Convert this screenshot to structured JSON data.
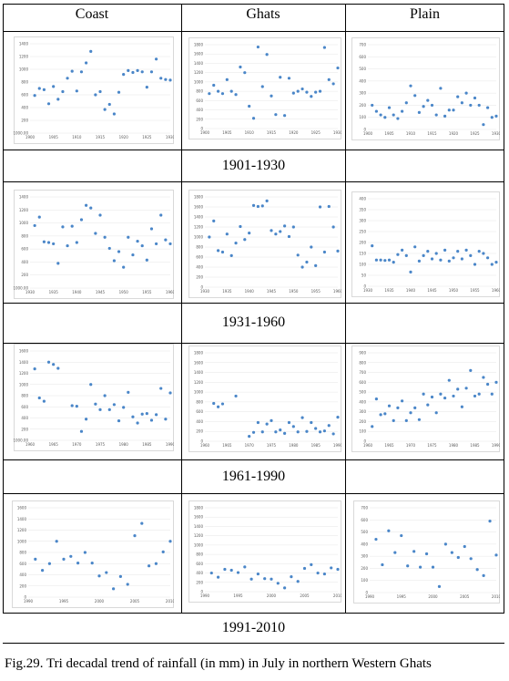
{
  "headers": [
    "Coast",
    "Ghats",
    "Plain"
  ],
  "periods": [
    "1901-1930",
    "1931-1960",
    "1961-1990",
    "1991-2010"
  ],
  "caption": "Fig.29. Tri decadal trend of rainfall (in mm) in July in northern Western Ghats",
  "colors": {
    "marker": "#4a86c8",
    "frame": "#d9d9d9",
    "grid": "#e6e6e6"
  },
  "chart_data": [
    {
      "type": "scatter",
      "region": "Coast",
      "period": "1901-1930",
      "x_ticks": [
        "1900",
        "1905",
        "1910",
        "1915",
        "1920",
        "1925",
        "1930"
      ],
      "y_ticks": [
        "-1000.00",
        "200",
        "400",
        "600",
        "800",
        "1000",
        "1200",
        "1400"
      ],
      "x": [
        1901,
        1902,
        1903,
        1904,
        1905,
        1906,
        1907,
        1908,
        1909,
        1910,
        1911,
        1912,
        1913,
        1914,
        1915,
        1916,
        1917,
        1918,
        1919,
        1920,
        1921,
        1922,
        1923,
        1924,
        1925,
        1926,
        1927,
        1928,
        1929,
        1930
      ],
      "y": [
        590,
        700,
        680,
        460,
        730,
        530,
        650,
        860,
        970,
        660,
        960,
        1100,
        1280,
        600,
        650,
        370,
        450,
        300,
        640,
        920,
        980,
        950,
        980,
        960,
        720,
        960,
        1160,
        860,
        840,
        830
      ]
    },
    {
      "type": "scatter",
      "region": "Ghats",
      "period": "1901-1930",
      "x_ticks": [
        "1900",
        "1905",
        "1910",
        "1915",
        "1920",
        "1925",
        "1930"
      ],
      "y_ticks": [
        "0",
        "200",
        "400",
        "600",
        "800",
        "1000",
        "1200",
        "1400",
        "1600",
        "1800"
      ],
      "x": [
        1901,
        1902,
        1903,
        1904,
        1905,
        1906,
        1907,
        1908,
        1909,
        1910,
        1911,
        1912,
        1913,
        1914,
        1915,
        1916,
        1917,
        1918,
        1919,
        1920,
        1921,
        1922,
        1923,
        1924,
        1925,
        1926,
        1927,
        1928,
        1929,
        1930
      ],
      "y": [
        750,
        930,
        800,
        750,
        1050,
        800,
        730,
        1320,
        1200,
        480,
        220,
        1750,
        900,
        1590,
        700,
        300,
        1100,
        280,
        1080,
        760,
        800,
        850,
        780,
        690,
        780,
        800,
        1740,
        1050,
        960,
        1300
      ]
    },
    {
      "type": "scatter",
      "region": "Plain",
      "period": "1901-1930",
      "x_ticks": [
        "1900",
        "1905",
        "1910",
        "1915",
        "1920",
        "1925",
        "1930"
      ],
      "y_ticks": [
        "0",
        "100",
        "200",
        "300",
        "400",
        "500",
        "600",
        "700"
      ],
      "x": [
        1901,
        1902,
        1903,
        1904,
        1905,
        1906,
        1907,
        1908,
        1909,
        1910,
        1911,
        1912,
        1913,
        1914,
        1915,
        1916,
        1917,
        1918,
        1919,
        1920,
        1921,
        1922,
        1923,
        1924,
        1925,
        1926,
        1927,
        1928,
        1929,
        1930
      ],
      "y": [
        200,
        150,
        120,
        100,
        180,
        120,
        90,
        150,
        220,
        360,
        280,
        140,
        190,
        240,
        200,
        120,
        340,
        110,
        160,
        160,
        270,
        220,
        300,
        200,
        260,
        200,
        40,
        180,
        100,
        110
      ]
    },
    {
      "type": "scatter",
      "region": "Coast",
      "period": "1931-1960",
      "x_ticks": [
        "1930",
        "1935",
        "1940",
        "1945",
        "1950",
        "1955",
        "1960"
      ],
      "y_ticks": [
        "-1000.00",
        "200",
        "400",
        "600",
        "800",
        "1000",
        "1200",
        "1400"
      ],
      "x": [
        1931,
        1932,
        1933,
        1934,
        1935,
        1936,
        1937,
        1938,
        1939,
        1940,
        1941,
        1942,
        1943,
        1944,
        1945,
        1946,
        1947,
        1948,
        1949,
        1950,
        1951,
        1952,
        1953,
        1954,
        1955,
        1956,
        1957,
        1958,
        1959,
        1960
      ],
      "y": [
        960,
        1090,
        710,
        700,
        680,
        380,
        940,
        650,
        950,
        700,
        1050,
        1270,
        1230,
        840,
        1120,
        780,
        610,
        420,
        560,
        320,
        780,
        510,
        720,
        650,
        430,
        910,
        680,
        1120,
        740,
        680
      ]
    },
    {
      "type": "scatter",
      "region": "Ghats",
      "period": "1931-1960",
      "x_ticks": [
        "1930",
        "1935",
        "1940",
        "1945",
        "1950",
        "1955",
        "1960"
      ],
      "y_ticks": [
        "0",
        "200",
        "400",
        "600",
        "800",
        "1000",
        "1200",
        "1400",
        "1600",
        "1800"
      ],
      "x": [
        1931,
        1932,
        1933,
        1934,
        1935,
        1936,
        1937,
        1938,
        1939,
        1940,
        1941,
        1942,
        1943,
        1944,
        1945,
        1946,
        1947,
        1948,
        1949,
        1950,
        1951,
        1952,
        1953,
        1954,
        1955,
        1956,
        1957,
        1958,
        1959,
        1960
      ],
      "y": [
        1000,
        1320,
        730,
        700,
        1060,
        630,
        880,
        1210,
        950,
        1080,
        1630,
        1610,
        1620,
        1720,
        1130,
        1060,
        1110,
        1220,
        1010,
        1200,
        640,
        400,
        500,
        800,
        430,
        1600,
        700,
        1610,
        1200,
        720
      ]
    },
    {
      "type": "scatter",
      "region": "Plain",
      "period": "1931-1960",
      "x_ticks": [
        "1930",
        "1935",
        "1940",
        "1945",
        "1950",
        "1955",
        "1960"
      ],
      "y_ticks": [
        "0",
        "50",
        "100",
        "150",
        "200",
        "250",
        "300",
        "350",
        "400"
      ],
      "x": [
        1931,
        1932,
        1933,
        1934,
        1935,
        1936,
        1937,
        1938,
        1939,
        1940,
        1941,
        1942,
        1943,
        1944,
        1945,
        1946,
        1947,
        1948,
        1949,
        1950,
        1951,
        1952,
        1953,
        1954,
        1955,
        1956,
        1957,
        1958,
        1959,
        1960
      ],
      "y": [
        185,
        120,
        120,
        118,
        120,
        110,
        145,
        165,
        140,
        65,
        180,
        115,
        140,
        160,
        125,
        150,
        120,
        165,
        115,
        130,
        160,
        125,
        165,
        140,
        100,
        160,
        150,
        130,
        100,
        110
      ]
    },
    {
      "type": "scatter",
      "region": "Coast",
      "period": "1961-1990",
      "x_ticks": [
        "1960",
        "1965",
        "1970",
        "1975",
        "1980",
        "1985",
        "1990"
      ],
      "y_ticks": [
        "-1000.00",
        "200",
        "400",
        "600",
        "800",
        "1000",
        "1200",
        "1400",
        "1600"
      ],
      "x": [
        1961,
        1962,
        1963,
        1964,
        1965,
        1966,
        1967,
        1968,
        1969,
        1970,
        1971,
        1972,
        1973,
        1974,
        1975,
        1976,
        1977,
        1978,
        1979,
        1980,
        1981,
        1982,
        1983,
        1984,
        1985,
        1986,
        1987,
        1988,
        1989,
        1990
      ],
      "y": [
        1280,
        760,
        700,
        1400,
        1360,
        1290,
        null,
        null,
        620,
        610,
        160,
        380,
        1000,
        650,
        550,
        800,
        550,
        640,
        350,
        590,
        860,
        420,
        310,
        470,
        480,
        360,
        460,
        930,
        380,
        850
      ]
    },
    {
      "type": "scatter",
      "region": "Ghats",
      "period": "1961-1990",
      "x_ticks": [
        "1960",
        "1965",
        "1970",
        "1975",
        "1980",
        "1985",
        "1990"
      ],
      "y_ticks": [
        "0",
        "200",
        "400",
        "600",
        "800",
        "1000",
        "1200",
        "1400",
        "1600",
        "1800"
      ],
      "x": [
        1961,
        1962,
        1963,
        1964,
        1965,
        1966,
        1967,
        1968,
        1969,
        1970,
        1971,
        1972,
        1973,
        1974,
        1975,
        1976,
        1977,
        1978,
        1979,
        1980,
        1981,
        1982,
        1983,
        1984,
        1985,
        1986,
        1987,
        1988,
        1989,
        1990
      ],
      "y": [
        null,
        770,
        700,
        760,
        null,
        null,
        920,
        null,
        null,
        100,
        180,
        380,
        190,
        350,
        420,
        190,
        230,
        160,
        380,
        300,
        190,
        480,
        200,
        380,
        260,
        190,
        210,
        320,
        150,
        490
      ]
    },
    {
      "type": "scatter",
      "region": "Plain",
      "period": "1961-1990",
      "x_ticks": [
        "1960",
        "1965",
        "1970",
        "1975",
        "1980",
        "1985",
        "1990"
      ],
      "y_ticks": [
        "0",
        "100",
        "200",
        "300",
        "400",
        "500",
        "600",
        "700",
        "800",
        "900"
      ],
      "x": [
        1961,
        1962,
        1963,
        1964,
        1965,
        1966,
        1967,
        1968,
        1969,
        1970,
        1971,
        1972,
        1973,
        1974,
        1975,
        1976,
        1977,
        1978,
        1979,
        1980,
        1981,
        1982,
        1983,
        1984,
        1985,
        1986,
        1987,
        1988,
        1989,
        1990
      ],
      "y": [
        150,
        430,
        270,
        280,
        360,
        210,
        340,
        410,
        210,
        290,
        340,
        220,
        480,
        370,
        450,
        290,
        480,
        440,
        620,
        460,
        530,
        350,
        540,
        720,
        460,
        480,
        650,
        580,
        480,
        600
      ]
    },
    {
      "type": "scatter",
      "region": "Coast",
      "period": "1991-2010",
      "x_ticks": [
        "1990",
        "1995",
        "2000",
        "2005",
        "2010"
      ],
      "y_ticks": [
        "0",
        "200",
        "400",
        "600",
        "800",
        "1000",
        "1200",
        "1400",
        "1600"
      ],
      "x": [
        1991,
        1992,
        1993,
        1994,
        1995,
        1996,
        1997,
        1998,
        1999,
        2000,
        2001,
        2002,
        2003,
        2004,
        2005,
        2006,
        2007,
        2008,
        2009,
        2010
      ],
      "y": [
        680,
        480,
        600,
        1000,
        680,
        730,
        610,
        800,
        610,
        380,
        440,
        150,
        370,
        230,
        1100,
        1320,
        560,
        600,
        810,
        1000
      ]
    },
    {
      "type": "scatter",
      "region": "Ghats",
      "period": "1991-2010",
      "x_ticks": [
        "1990",
        "1995",
        "2000",
        "2005",
        "2010"
      ],
      "y_ticks": [
        "0",
        "200",
        "400",
        "600",
        "800",
        "1000",
        "1200",
        "1400",
        "1600",
        "1800"
      ],
      "x": [
        1991,
        1992,
        1993,
        1994,
        1995,
        1996,
        1997,
        1998,
        1999,
        2000,
        2001,
        2002,
        2003,
        2004,
        2005,
        2006,
        2007,
        2008,
        2009,
        2010
      ],
      "y": [
        400,
        310,
        480,
        460,
        410,
        530,
        270,
        380,
        280,
        270,
        180,
        80,
        320,
        220,
        500,
        580,
        400,
        380,
        510,
        480
      ]
    },
    {
      "type": "scatter",
      "region": "Plain",
      "period": "1991-2010",
      "x_ticks": [
        "1990",
        "1995",
        "2000",
        "2005",
        "2010"
      ],
      "y_ticks": [
        "0",
        "100",
        "200",
        "300",
        "400",
        "500",
        "600",
        "700"
      ],
      "x": [
        1991,
        1992,
        1993,
        1994,
        1995,
        1996,
        1997,
        1998,
        1999,
        2000,
        2001,
        2002,
        2003,
        2004,
        2005,
        2006,
        2007,
        2008,
        2009,
        2010
      ],
      "y": [
        440,
        230,
        510,
        330,
        470,
        220,
        340,
        210,
        320,
        210,
        50,
        400,
        330,
        290,
        380,
        280,
        190,
        140,
        590,
        310
      ]
    }
  ]
}
